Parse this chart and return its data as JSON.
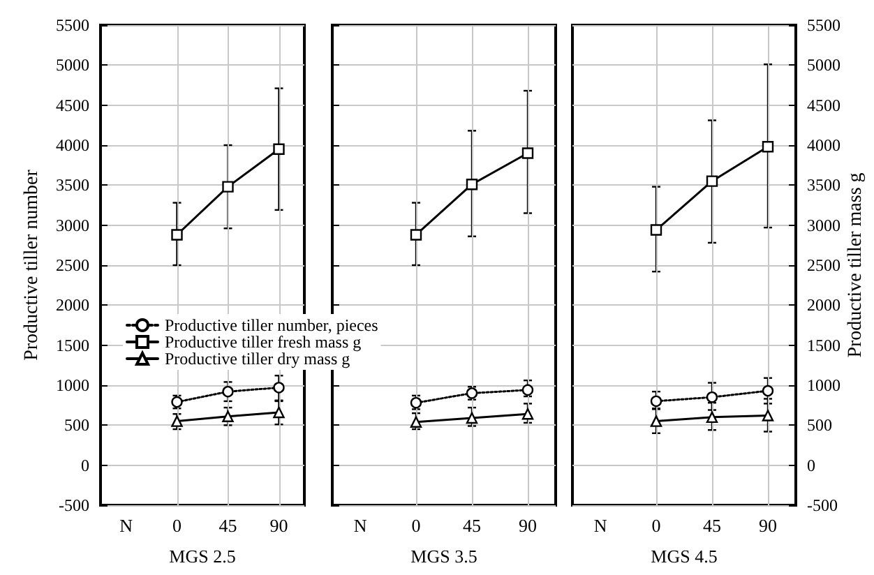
{
  "chart_data": [
    {
      "type": "line",
      "xlabel": "MGS 2.5",
      "ylabel": "Productive tiller number",
      "categories": [
        "N",
        "0",
        "45",
        "90"
      ],
      "ylim": [
        -500,
        5500
      ],
      "yticks": [
        -500,
        0,
        500,
        1000,
        1500,
        2000,
        2500,
        3000,
        3500,
        4000,
        4500,
        5000,
        5500
      ],
      "grid": true,
      "legend": "bottom right",
      "series": [
        {
          "name": "Productive tiller number, pieces",
          "color": "#000000",
          "marker": "circle",
          "line_style": "dotted",
          "values": [
            null,
            790,
            920,
            970
          ],
          "errors": [
            null,
            [
              710,
              870
            ],
            [
              800,
              1040
            ],
            [
              800,
              1120
            ]
          ]
        },
        {
          "name": "Productive tiller fresh mass g",
          "color": "#000000",
          "marker": "square",
          "line_style": "solid",
          "values": [
            null,
            2880,
            3480,
            3950
          ],
          "errors": [
            null,
            [
              2500,
              3280
            ],
            [
              2960,
              4000
            ],
            [
              3190,
              4710
            ]
          ]
        },
        {
          "name": "Productive tiller dry mass g",
          "color": "#000000",
          "marker": "triangle",
          "line_style": "solid",
          "values": [
            null,
            550,
            610,
            660
          ],
          "errors": [
            null,
            [
              450,
              640
            ],
            [
              500,
              720
            ],
            [
              510,
              810
            ]
          ]
        }
      ]
    },
    {
      "type": "line",
      "xlabel": "MGS 3.5",
      "categories": [
        "N",
        "0",
        "45",
        "90"
      ],
      "ylim": [
        -500,
        5500
      ],
      "yticks": [
        -500,
        0,
        500,
        1000,
        1500,
        2000,
        2500,
        3000,
        3500,
        4000,
        4500,
        5000,
        5500
      ],
      "grid": true,
      "tick_labels": "x",
      "series": [
        {
          "color": "#000000",
          "marker": "circle",
          "line_style": "dotted",
          "values": [
            null,
            780,
            900,
            940
          ],
          "errors": [
            null,
            [
              700,
              870
            ],
            [
              820,
              980
            ],
            [
              860,
              1060
            ]
          ]
        },
        {
          "color": "#000000",
          "marker": "square",
          "line_style": "solid",
          "values": [
            null,
            2880,
            3510,
            3900
          ],
          "errors": [
            null,
            [
              2500,
              3280
            ],
            [
              2860,
              4180
            ],
            [
              3150,
              4680
            ]
          ]
        },
        {
          "color": "#000000",
          "marker": "triangle",
          "line_style": "solid",
          "values": [
            null,
            540,
            590,
            640
          ],
          "errors": [
            null,
            [
              450,
              650
            ],
            [
              490,
              720
            ],
            [
              530,
              770
            ]
          ]
        }
      ]
    },
    {
      "type": "line",
      "xlabel": "MGS 4.5",
      "ylabel": "Productive tiller mass g",
      "categories": [
        "N",
        "0",
        "45",
        "90"
      ],
      "ylim": [
        -500,
        5500
      ],
      "yticks": [
        -500,
        0,
        500,
        1000,
        1500,
        2000,
        2500,
        3000,
        3500,
        4000,
        4500,
        5000,
        5500
      ],
      "grid": true,
      "series": [
        {
          "color": "#000000",
          "marker": "circle",
          "line_style": "dotted",
          "values": [
            null,
            800,
            850,
            930
          ],
          "errors": [
            null,
            [
              700,
              920
            ],
            [
              690,
              1030
            ],
            [
              770,
              1090
            ]
          ]
        },
        {
          "color": "#000000",
          "marker": "square",
          "line_style": "solid",
          "values": [
            null,
            2940,
            3550,
            3980
          ],
          "errors": [
            null,
            [
              2420,
              3480
            ],
            [
              2780,
              4310
            ],
            [
              2970,
              5010
            ]
          ]
        },
        {
          "color": "#000000",
          "marker": "triangle",
          "line_style": "solid",
          "values": [
            null,
            550,
            600,
            620
          ],
          "errors": [
            null,
            [
              400,
              710
            ],
            [
              440,
              780
            ],
            [
              420,
              830
            ]
          ]
        }
      ]
    }
  ]
}
